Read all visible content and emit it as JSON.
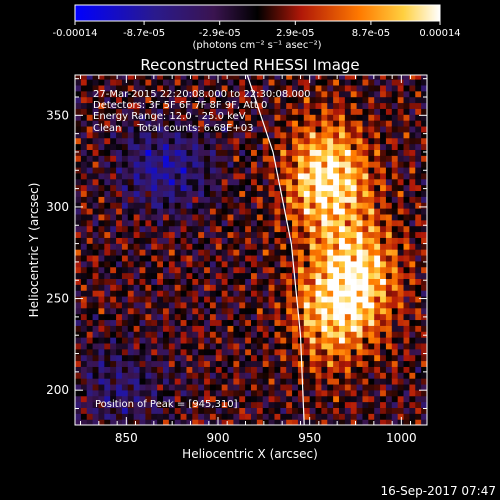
{
  "chart_data": {
    "type": "heatmap",
    "title": "Reconstructed RHESSI Image",
    "xlabel": "Heliocentric X (arcsec)",
    "ylabel": "Heliocentric Y (arcsec)",
    "xlim": [
      822,
      1014
    ],
    "ylim": [
      181,
      372
    ],
    "x_ticks": [
      {
        "value": 850,
        "label": "850"
      },
      {
        "value": 900,
        "label": "900"
      },
      {
        "value": 950,
        "label": "950"
      },
      {
        "value": 1000,
        "label": "1000"
      }
    ],
    "y_ticks": [
      {
        "value": 200,
        "label": "200"
      },
      {
        "value": 250,
        "label": "250"
      },
      {
        "value": 300,
        "label": "300"
      },
      {
        "value": 350,
        "label": "350"
      }
    ],
    "colorbar": {
      "range": [
        -0.00014,
        0.00014
      ],
      "tick_labels": [
        {
          "value": -0.00014,
          "label": "-0.00014"
        },
        {
          "value": -8.7e-05,
          "label": "-8.7e-05"
        },
        {
          "value": -2.9e-05,
          "label": "-2.9e-05"
        },
        {
          "value": 2.9e-05,
          "label": "2.9e-05"
        },
        {
          "value": 8.7e-05,
          "label": "8.7e-05"
        },
        {
          "value": 0.00014,
          "label": "0.00014"
        }
      ],
      "unit_label": "(photons cm⁻² s⁻¹ asec⁻²)",
      "colormap": "blue-purple-red-yellow-white"
    },
    "annotations": [
      "27-Mar-2015 22:20:08.000 to 22:30:08.000",
      "Detectors: 3F 5F 6F 7F 8F 9F, Att 0",
      "Energy Range: 12.0 - 25.0 keV",
      "Clean     Total counts: 6.68E+03"
    ],
    "peak_label": "Position of Peak = [945,310]",
    "peak": {
      "x": 945,
      "y": 310
    },
    "limb_curve": [
      [
        916,
        372
      ],
      [
        930,
        330
      ],
      [
        940,
        280
      ],
      [
        945,
        230
      ],
      [
        947,
        181
      ]
    ],
    "bright_sources": [
      {
        "x": 958,
        "y": 315,
        "intensity": 0.00014
      },
      {
        "x": 975,
        "y": 262,
        "intensity": 0.00011
      },
      {
        "x": 960,
        "y": 240,
        "intensity": 9e-05
      }
    ],
    "negative_sources": [
      {
        "x": 870,
        "y": 320,
        "intensity": -8e-05
      },
      {
        "x": 845,
        "y": 200,
        "intensity": -5e-05
      }
    ]
  },
  "footer": {
    "timestamp": "16-Sep-2017 07:47"
  }
}
